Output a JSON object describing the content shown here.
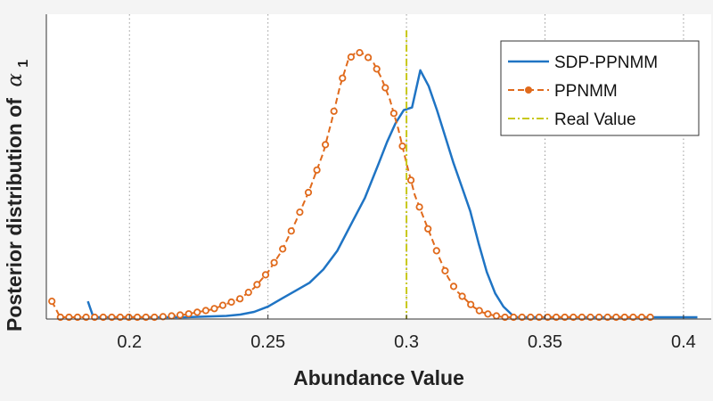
{
  "chart_data": {
    "type": "line",
    "xlabel": "Abundance Value",
    "ylabel": "Posterior distribution of",
    "ylabel_symbol": "α",
    "ylabel_subscript": "1",
    "xlim": [
      0.17,
      0.41
    ],
    "ylim": [
      0,
      1
    ],
    "x_ticks": [
      0.2,
      0.25,
      0.3,
      0.35,
      0.4
    ],
    "x_tick_labels": [
      "0.2",
      "0.25",
      "0.3",
      "0.35",
      "0.4"
    ],
    "grid": "vertical-dotted",
    "legend": "top-right",
    "series": [
      {
        "name": "SDP-PPNMM",
        "style": "solid",
        "color": "#1f74c4",
        "x": [
          0.185,
          0.186,
          0.187,
          0.19,
          0.22,
          0.235,
          0.24,
          0.245,
          0.25,
          0.255,
          0.26,
          0.265,
          0.27,
          0.275,
          0.28,
          0.285,
          0.29,
          0.293,
          0.296,
          0.299,
          0.302,
          0.305,
          0.308,
          0.311,
          0.314,
          0.317,
          0.32,
          0.323,
          0.326,
          0.329,
          0.332,
          0.335,
          0.338,
          0.34,
          0.36,
          0.38,
          0.4,
          0.405
        ],
        "y": [
          0.06,
          0.03,
          0.0,
          0.0,
          0.0,
          0.005,
          0.01,
          0.02,
          0.04,
          0.07,
          0.1,
          0.13,
          0.18,
          0.25,
          0.35,
          0.45,
          0.58,
          0.66,
          0.73,
          0.78,
          0.79,
          0.93,
          0.87,
          0.78,
          0.68,
          0.58,
          0.49,
          0.4,
          0.28,
          0.17,
          0.09,
          0.04,
          0.01,
          0.0,
          0.0,
          0.0,
          0.0,
          0.0
        ]
      },
      {
        "name": "PPNMM",
        "style": "dashed-dot-marker",
        "color": "#e06a1c",
        "x": [
          0.172,
          0.175,
          0.19,
          0.21,
          0.22,
          0.23,
          0.24,
          0.245,
          0.25,
          0.255,
          0.26,
          0.265,
          0.27,
          0.273,
          0.276,
          0.279,
          0.282,
          0.285,
          0.288,
          0.291,
          0.294,
          0.297,
          0.3,
          0.303,
          0.306,
          0.309,
          0.312,
          0.315,
          0.318,
          0.321,
          0.324,
          0.327,
          0.33,
          0.335,
          0.34,
          0.36,
          0.38,
          0.388
        ],
        "y": [
          0.06,
          0.0,
          0.0,
          0.0,
          0.01,
          0.03,
          0.07,
          0.11,
          0.17,
          0.25,
          0.36,
          0.48,
          0.62,
          0.74,
          0.87,
          0.97,
          1.0,
          0.99,
          0.96,
          0.9,
          0.82,
          0.71,
          0.58,
          0.46,
          0.38,
          0.3,
          0.22,
          0.15,
          0.1,
          0.07,
          0.04,
          0.02,
          0.01,
          0.0,
          0.0,
          0.0,
          0.0,
          0.0
        ]
      },
      {
        "name": "Real Value",
        "style": "dash-dot-vertical",
        "color": "#c8c81a",
        "x_value": 0.3
      }
    ]
  }
}
